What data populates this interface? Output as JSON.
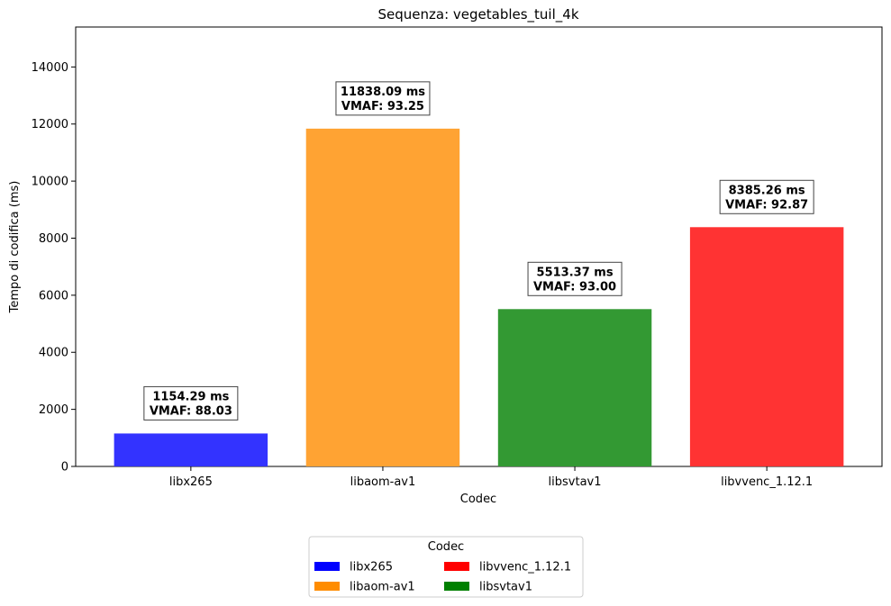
{
  "chart_data": {
    "type": "bar",
    "title": "Sequenza: vegetables_tuil_4k",
    "xlabel": "Codec",
    "ylabel": "Tempo di codifica (ms)",
    "ylim": [
      0,
      15400
    ],
    "yticks": [
      0,
      2000,
      4000,
      6000,
      8000,
      10000,
      12000,
      14000
    ],
    "categories": [
      "libx265",
      "libaom-av1",
      "libsvtav1",
      "libvvenc_1.12.1"
    ],
    "values": [
      1154.29,
      11838.09,
      5513.37,
      8385.26
    ],
    "colors": [
      "#3333ff",
      "#ffa333",
      "#339933",
      "#ff3333"
    ],
    "annotations": [
      {
        "line1": "1154.29 ms",
        "line2": "VMAF: 88.03"
      },
      {
        "line1": "11838.09 ms",
        "line2": "VMAF: 93.25"
      },
      {
        "line1": "5513.37 ms",
        "line2": "VMAF: 93.00"
      },
      {
        "line1": "8385.26 ms",
        "line2": "VMAF: 92.87"
      }
    ],
    "grid": false,
    "legend": {
      "title": "Codec",
      "placement": "bottom-center",
      "entries": [
        {
          "label": "libx265",
          "color": "#0000ff"
        },
        {
          "label": "libvvenc_1.12.1",
          "color": "#ff0000"
        },
        {
          "label": "libaom-av1",
          "color": "#ff8c00"
        },
        {
          "label": "libsvtav1",
          "color": "#008000"
        }
      ]
    }
  }
}
